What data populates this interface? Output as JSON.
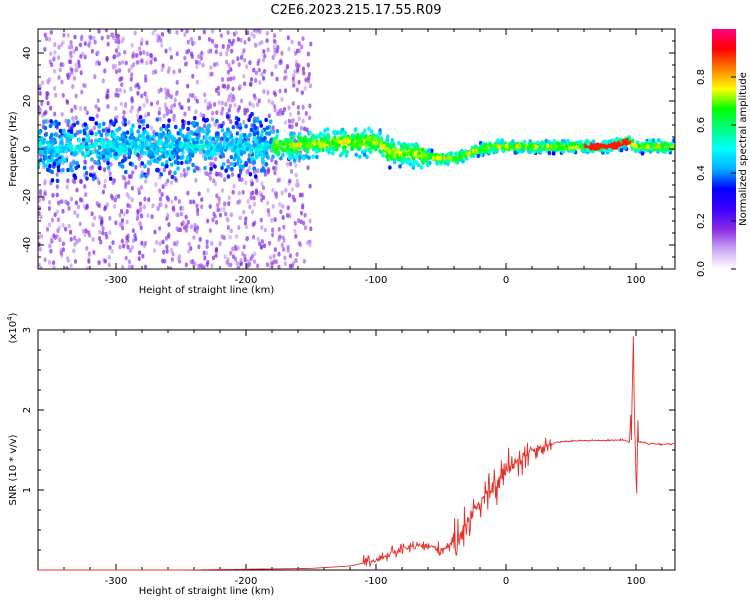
{
  "chart_data": [
    {
      "type": "heatmap",
      "title": "C2E6.2023.215.17.55.R09",
      "xlabel": "Height of straight line (km)",
      "ylabel": "Frequency (Hz)",
      "xlim": [
        -360,
        130
      ],
      "ylim": [
        -50,
        50
      ],
      "x_ticks": [
        -300,
        -200,
        -100,
        0,
        100
      ],
      "y_ticks": [
        -40,
        -20,
        0,
        20,
        40
      ],
      "colorbar": {
        "label": "Normalized spectral amplitude",
        "range": [
          0.0,
          1.0
        ],
        "ticks": [
          0.0,
          0.2,
          0.4,
          0.6,
          0.8
        ],
        "colormap": [
          "#ffffff",
          "#c9a5f5",
          "#8a2be2",
          "#3b00ff",
          "#0000ff",
          "#00b0ff",
          "#00ffff",
          "#00ff80",
          "#00ff00",
          "#ffff00",
          "#ff8000",
          "#ff0000",
          "#ff0080"
        ]
      },
      "ridge": {
        "description_points_x": [
          -360,
          -300,
          -200,
          -150,
          -120,
          -100,
          -90,
          -80,
          -70,
          -60,
          -50,
          -40,
          -30,
          -20,
          -10,
          0,
          10,
          50,
          80,
          95,
          100,
          130
        ],
        "description_points_y": [
          0,
          1,
          1,
          2,
          3,
          3,
          -1,
          -2,
          -2,
          -3,
          -4,
          -4,
          -2,
          0,
          1,
          1,
          1,
          1,
          1,
          3,
          1,
          1
        ]
      },
      "grid": false
    },
    {
      "type": "line",
      "title": "",
      "xlabel": "Height of straight line (km)",
      "ylabel": "SNR (10 * v/v)",
      "scale_label": "(x10",
      "scale_exp": "4",
      "scale_close": ")",
      "xlim": [
        -360,
        130
      ],
      "ylim": [
        0,
        3
      ],
      "x_ticks": [
        -300,
        -200,
        -100,
        0,
        100
      ],
      "y_ticks": [
        1,
        2,
        3
      ],
      "series": [
        {
          "color": "#e8302a",
          "x": [
            -360,
            -250,
            -200,
            -150,
            -120,
            -100,
            -90,
            -80,
            -70,
            -60,
            -50,
            -40,
            -30,
            -25,
            -20,
            -15,
            -10,
            -5,
            0,
            10,
            20,
            30,
            40,
            60,
            80,
            90,
            95,
            98,
            100,
            102,
            105,
            110,
            120,
            130
          ],
          "y": [
            0.0,
            0.0,
            0.01,
            0.02,
            0.05,
            0.12,
            0.2,
            0.25,
            0.3,
            0.3,
            0.25,
            0.35,
            0.6,
            0.75,
            0.85,
            0.95,
            1.0,
            1.1,
            1.25,
            1.4,
            1.5,
            1.55,
            1.6,
            1.62,
            1.62,
            1.63,
            1.6,
            2.6,
            1.2,
            1.6,
            1.6,
            1.58,
            1.57,
            1.58
          ]
        }
      ],
      "grid": false
    }
  ]
}
